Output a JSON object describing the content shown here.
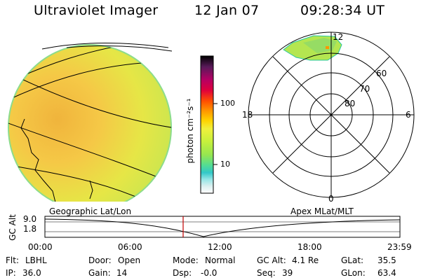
{
  "header": {
    "title": "Ultraviolet Imager",
    "date": "12 Jan 07",
    "time": "09:28:34 UT"
  },
  "colorbar": {
    "unit_label": "photon cm⁻²s⁻¹",
    "tick_labels": [
      "100",
      "10"
    ],
    "tick_values": [
      100,
      10
    ],
    "colors": [
      "#000000",
      "#5a1a5a",
      "#b40064",
      "#e0003c",
      "#ff5000",
      "#ff9600",
      "#ffd200",
      "#f0f03c",
      "#c8f03c",
      "#96e650",
      "#50dc96",
      "#32c8c8",
      "#96e6e6",
      "#dcf0f0",
      "#ffffff"
    ]
  },
  "polar": {
    "angle_labels": [
      "12",
      "18",
      "6",
      "0"
    ],
    "lat_labels": [
      "60",
      "70",
      "80"
    ]
  },
  "timeline": {
    "left_title": "Geographic Lat/Lon",
    "right_title": "Apex MLat/MLT",
    "axis_label": "GC Alt",
    "y_labels": [
      "9.0",
      "1.8"
    ],
    "x_labels": [
      "00:00",
      "06:00",
      "12:00",
      "18:00",
      "23:59"
    ],
    "current_marker": "09:28",
    "marker_color": "#c00000"
  },
  "status": {
    "flt_label": "Flt:",
    "flt": "LBHL",
    "ip_label": "IP:",
    "ip": "36.0",
    "door_label": "Door:",
    "door": "Open",
    "gain_label": "Gain:",
    "gain": "14",
    "mode_label": "Mode:",
    "mode": "Normal",
    "dsp_label": "Dsp:",
    "dsp": "-0.0",
    "gcalt_label": "GC Alt:",
    "gcalt": "4.1 Re",
    "seq_label": "Seq:",
    "seq": "39",
    "glat_label": "GLat:",
    "glat": "35.5",
    "glon_label": "GLon:",
    "glon": "63.4"
  }
}
